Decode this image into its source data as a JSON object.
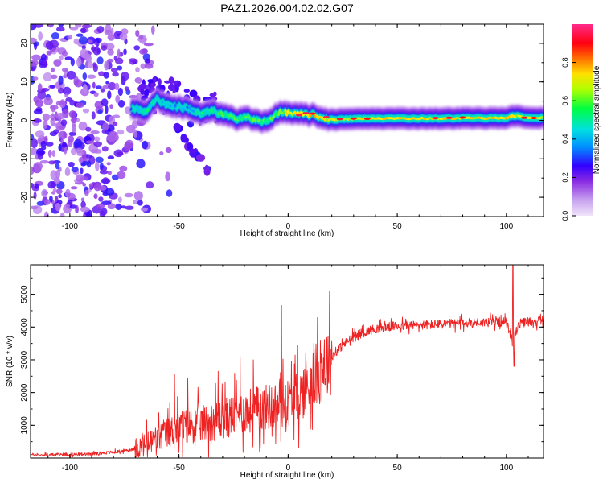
{
  "figure_title": "PAZ1.2026.004.02.02.G07",
  "chart_data": [
    {
      "type": "heatmap",
      "title": "PAZ1.2026.004.02.02.G07",
      "xlabel": "Height of straight line (km)",
      "ylabel": "Frequency (Hz)",
      "xlim": [
        -118,
        117
      ],
      "ylim": [
        -25,
        25
      ],
      "xticks": [
        -100,
        -50,
        0,
        50,
        100
      ],
      "yticks": [
        20,
        10,
        0,
        -10,
        -20
      ],
      "colorbar": {
        "label": "Normalized spectral amplitude",
        "range": [
          0.0,
          1.0
        ],
        "ticks": [
          "0.0",
          "0.2",
          "0.4",
          "0.6",
          "0.8"
        ],
        "colors": [
          "#e8d5f7",
          "#8a2be2",
          "#3300ff",
          "#00c8ff",
          "#00ff60",
          "#fff000",
          "#ff7000",
          "#ff0000",
          "#ff2b8a"
        ]
      },
      "ridge": {
        "x": [
          -72,
          -65,
          -60,
          -55,
          -50,
          -45,
          -40,
          -35,
          -30,
          -25,
          -20,
          -15,
          -10,
          -5,
          0,
          5,
          10,
          15,
          20,
          25,
          30,
          40,
          50,
          60,
          70,
          80,
          90,
          100,
          103,
          110,
          117
        ],
        "y": [
          3,
          2.5,
          5.5,
          4,
          3.5,
          3,
          1.5,
          2.5,
          1.5,
          0.5,
          1,
          0,
          -0.5,
          2,
          2,
          1.5,
          1.5,
          0.8,
          0.2,
          0.3,
          0.4,
          0.5,
          0.5,
          0.5,
          0.5,
          0.6,
          0.6,
          0.6,
          1.2,
          0.7,
          0.7
        ],
        "amplitude": [
          0.35,
          0.45,
          0.4,
          0.35,
          0.4,
          0.35,
          0.45,
          0.45,
          0.5,
          0.5,
          0.5,
          0.5,
          0.5,
          0.55,
          0.6,
          0.65,
          0.65,
          0.65,
          0.6,
          0.6,
          0.6,
          0.62,
          0.62,
          0.62,
          0.62,
          0.62,
          0.62,
          0.65,
          0.6,
          0.62,
          0.62
        ]
      },
      "branch": {
        "x": [
          -50,
          -47,
          -45,
          -43,
          -41,
          -38
        ],
        "y": [
          -2,
          -4.5,
          -6.5,
          -8.5,
          -10,
          -13
        ]
      }
    },
    {
      "type": "line",
      "title": "",
      "xlabel": "Height of straight line (km)",
      "ylabel": "SNR (10 * v/v)",
      "xlim": [
        -118,
        117
      ],
      "ylim": [
        0,
        5900
      ],
      "xticks": [
        -100,
        -50,
        0,
        50,
        100
      ],
      "yticks": [
        1000,
        2000,
        3000,
        4000,
        5000
      ],
      "color": "#ee2222",
      "x": [
        -118,
        -110,
        -100,
        -90,
        -80,
        -70,
        -65,
        -60,
        -55,
        -50,
        -45,
        -40,
        -35,
        -30,
        -25,
        -20,
        -15,
        -10,
        -5,
        0,
        5,
        10,
        15,
        20,
        25,
        30,
        35,
        40,
        45,
        50,
        55,
        60,
        65,
        70,
        75,
        80,
        85,
        90,
        95,
        100,
        102,
        103,
        104,
        106,
        110,
        117
      ],
      "y": [
        100,
        100,
        110,
        130,
        180,
        280,
        400,
        600,
        780,
        900,
        1000,
        1050,
        1100,
        1200,
        1300,
        1400,
        1500,
        1550,
        1600,
        1700,
        1900,
        2300,
        2700,
        3100,
        3450,
        3700,
        3850,
        3950,
        4000,
        4030,
        4050,
        4060,
        4070,
        4090,
        4100,
        4120,
        4130,
        4150,
        4160,
        4150,
        3700,
        3500,
        3800,
        4100,
        4170,
        4200
      ],
      "spikes": [
        {
          "x": -52,
          "y": 2550
        },
        {
          "x": -46,
          "y": 2450
        },
        {
          "x": -32,
          "y": 2650
        },
        {
          "x": -22,
          "y": 3100
        },
        {
          "x": -16,
          "y": 3000
        },
        {
          "x": -3,
          "y": 4660
        },
        {
          "x": 8,
          "y": 3200
        },
        {
          "x": 103,
          "y": 5900
        },
        {
          "x": 103.5,
          "y": 2800
        }
      ]
    }
  ]
}
